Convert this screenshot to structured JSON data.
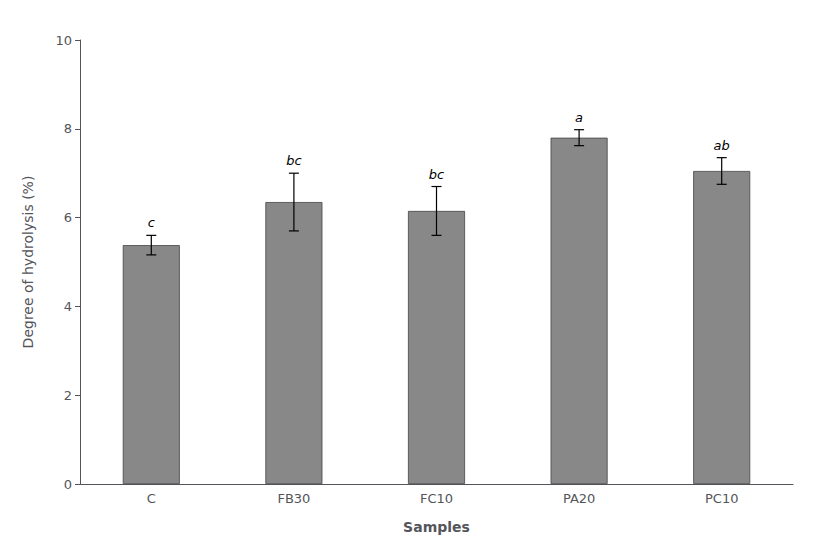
{
  "chart_data": {
    "type": "bar",
    "categories": [
      "C",
      "FB30",
      "FC10",
      "PA20",
      "PC10"
    ],
    "values": [
      5.38,
      6.35,
      6.15,
      7.8,
      7.05
    ],
    "errors": [
      0.22,
      0.65,
      0.55,
      0.18,
      0.3
    ],
    "annotations": [
      "c",
      "bc",
      "bc",
      "a",
      "ab"
    ],
    "color": "#888888",
    "xlabel": "Samples",
    "ylabel": "Degree of hydrolysis (%)",
    "ylim": [
      0,
      10
    ],
    "yticks": [
      0,
      2,
      4,
      6,
      8,
      10
    ],
    "grid": false
  }
}
